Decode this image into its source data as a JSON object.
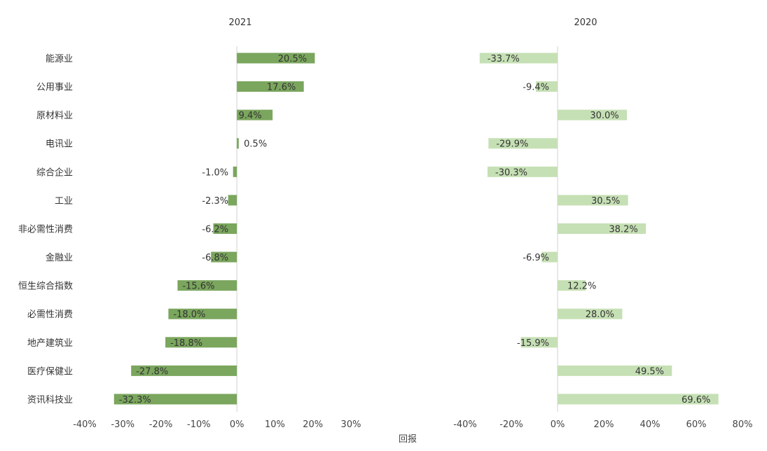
{
  "chart_data": {
    "type": "bar",
    "orientation": "horizontal",
    "xlabel": "回报",
    "categories": [
      "能源业",
      "公用事业",
      "原材料业",
      "电讯业",
      "综合企业",
      "工业",
      "非必需性消费",
      "金融业",
      "恒生综合指数",
      "必需性消费",
      "地产建筑业",
      "医疗保健业",
      "资讯科技业"
    ],
    "panels": [
      {
        "title": "2021",
        "values": [
          20.5,
          17.6,
          9.4,
          0.5,
          -1.0,
          -2.3,
          -6.2,
          -6.8,
          -15.6,
          -18.0,
          -18.8,
          -27.8,
          -32.3
        ],
        "value_labels": [
          "20.5%",
          "17.6%",
          "9.4%",
          "0.5%",
          "-1.0%",
          "-2.3%",
          "-6.2%",
          "-6.8%",
          "-15.6%",
          "-18.0%",
          "-18.8%",
          "-27.8%",
          "-32.3%"
        ],
        "xlim": [
          -40,
          30
        ],
        "ticks": [
          -40,
          -30,
          -20,
          -10,
          0,
          10,
          20,
          30
        ],
        "tick_labels": [
          "-40%",
          "-30%",
          "-20%",
          "-10%",
          "0%",
          "10%",
          "20%",
          "30%"
        ],
        "color": "#7aa65d"
      },
      {
        "title": "2020",
        "values": [
          -33.7,
          -9.4,
          30.0,
          -29.9,
          -30.3,
          30.5,
          38.2,
          -6.9,
          12.2,
          28.0,
          -15.9,
          49.5,
          69.6
        ],
        "value_labels": [
          "-33.7%",
          "-9.4%",
          "30.0%",
          "-29.9%",
          "-30.3%",
          "30.5%",
          "38.2%",
          "-6.9%",
          "12.2%",
          "28.0%",
          "-15.9%",
          "49.5%",
          "69.6%"
        ],
        "xlim": [
          -40,
          80
        ],
        "ticks": [
          -40,
          -20,
          0,
          20,
          40,
          60,
          80
        ],
        "tick_labels": [
          "-40%",
          "-20%",
          "0%",
          "20%",
          "40%",
          "60%",
          "80%"
        ],
        "color": "#c6e0b5"
      }
    ],
    "grid": false,
    "legend": "none"
  }
}
